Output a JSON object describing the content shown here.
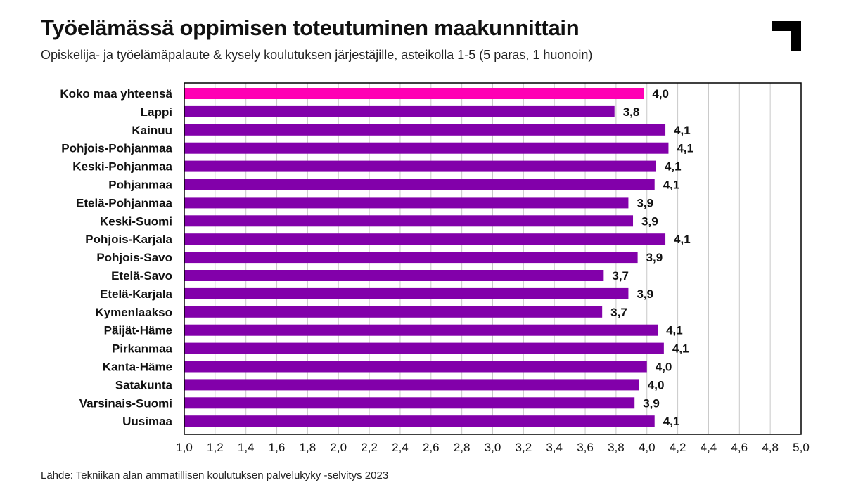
{
  "header": {
    "title": "Työelämässä oppimisen toteutuminen maakunnittain",
    "subtitle": "Opiskelija- ja työelämäpalaute & kysely koulutuksen järjestäjille, asteikolla 1-5 (5 paras, 1 huonoin)"
  },
  "logo": {
    "icon": "corner-bracket-logo",
    "color": "#000000"
  },
  "footer": {
    "source": "Lähde: Tekniikan alan ammatillisen koulutuksen palvelukyky -selvitys 2023"
  },
  "colors": {
    "highlight": "#ff00b4",
    "bar": "#8200aa",
    "grid": "#c8c8c8",
    "frame": "#000000"
  },
  "chart_data": {
    "type": "bar",
    "orientation": "horizontal",
    "categories": [
      "Koko maa yhteensä",
      "Lappi",
      "Kainuu",
      "Pohjois-Pohjanmaa",
      "Keski-Pohjanmaa",
      "Pohjanmaa",
      "Etelä-Pohjanmaa",
      "Keski-Suomi",
      "Pohjois-Karjala",
      "Pohjois-Savo",
      "Etelä-Savo",
      "Etelä-Karjala",
      "Kymenlaakso",
      "Päijät-Häme",
      "Pirkanmaa",
      "Kanta-Häme",
      "Satakunta",
      "Varsinais-Suomi",
      "Uusimaa"
    ],
    "values": [
      3.98,
      3.79,
      4.12,
      4.14,
      4.06,
      4.05,
      3.88,
      3.91,
      4.12,
      3.94,
      3.72,
      3.88,
      3.71,
      4.07,
      4.11,
      4.0,
      3.95,
      3.92,
      4.05
    ],
    "value_labels": [
      "4,0",
      "3,8",
      "4,1",
      "4,1",
      "4,1",
      "4,1",
      "3,9",
      "3,9",
      "4,1",
      "3,9",
      "3,7",
      "3,9",
      "3,7",
      "4,1",
      "4,1",
      "4,0",
      "4,0",
      "3,9",
      "4,1"
    ],
    "highlight_index": 0,
    "xlim": [
      1.0,
      5.0
    ],
    "xticks": [
      1.0,
      1.2,
      1.4,
      1.6,
      1.8,
      2.0,
      2.2,
      2.4,
      2.6,
      2.8,
      3.0,
      3.2,
      3.4,
      3.6,
      3.8,
      4.0,
      4.2,
      4.4,
      4.6,
      4.8,
      5.0
    ],
    "xtick_labels": [
      "1,0",
      "1,2",
      "1,4",
      "1,6",
      "1,8",
      "2,0",
      "2,2",
      "2,4",
      "2,6",
      "2,8",
      "3,0",
      "3,2",
      "3,4",
      "3,6",
      "3,8",
      "4,0",
      "4,2",
      "4,4",
      "4,6",
      "4,8",
      "5,0"
    ],
    "grid": true,
    "title": "Työelämässä oppimisen toteutuminen maakunnittain",
    "xlabel": "",
    "ylabel": ""
  }
}
